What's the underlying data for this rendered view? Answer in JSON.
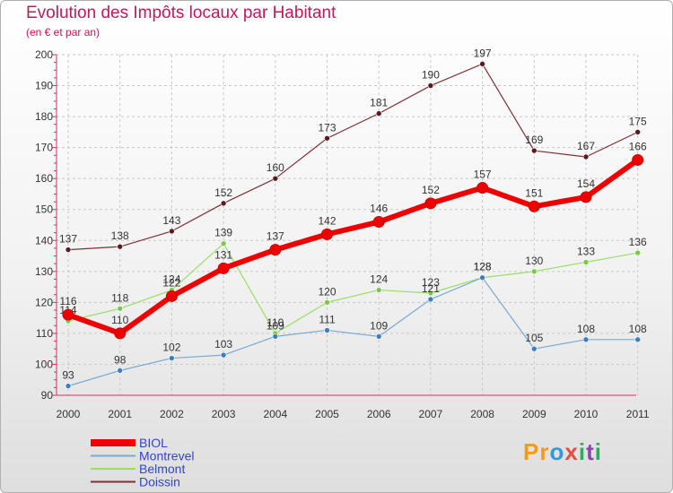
{
  "title": "Evolution des Impôts locaux par Habitant",
  "subtitle": "(en € et par an)",
  "brand": {
    "text": "Proxiti",
    "letters": [
      {
        "ch": "P",
        "color": "#f39c12"
      },
      {
        "ch": "r",
        "color": "#f39c12"
      },
      {
        "ch": "o",
        "color": "#3498db"
      },
      {
        "ch": "x",
        "color": "#e74c3c"
      },
      {
        "ch": "i",
        "color": "#27ae60"
      },
      {
        "ch": "t",
        "color": "#8e44ad"
      },
      {
        "ch": "i",
        "color": "#27ae60"
      }
    ]
  },
  "chart_data": {
    "type": "line",
    "title": "Evolution des Impôts locaux par Habitant",
    "subtitle": "(en € et par an)",
    "xlabel": "",
    "ylabel": "",
    "x": [
      "2000",
      "2001",
      "2002",
      "2003",
      "2004",
      "2005",
      "2006",
      "2007",
      "2008",
      "2009",
      "2010",
      "2011"
    ],
    "ylim": [
      90,
      200
    ],
    "yticks": [
      90,
      100,
      110,
      120,
      130,
      140,
      150,
      160,
      170,
      180,
      190,
      200
    ],
    "grid": true,
    "legend_position": "bottom-left",
    "series": [
      {
        "name": "BIOL",
        "color": "#ee0000",
        "values": [
          116,
          110,
          122,
          131,
          137,
          142,
          146,
          152,
          157,
          151,
          154,
          166
        ]
      },
      {
        "name": "Montrevel",
        "color": "#5b9bd5",
        "values": [
          93,
          98,
          102,
          103,
          109,
          111,
          109,
          121,
          128,
          105,
          108,
          108
        ]
      },
      {
        "name": "Belmont",
        "color": "#99dd66",
        "values": [
          114,
          118,
          124,
          139,
          110,
          120,
          124,
          123,
          128,
          130,
          133,
          136
        ]
      },
      {
        "name": "Doissin",
        "color": "#7f2f35",
        "values": [
          137,
          138,
          143,
          152,
          160,
          173,
          181,
          190,
          197,
          169,
          167,
          175
        ]
      }
    ]
  }
}
